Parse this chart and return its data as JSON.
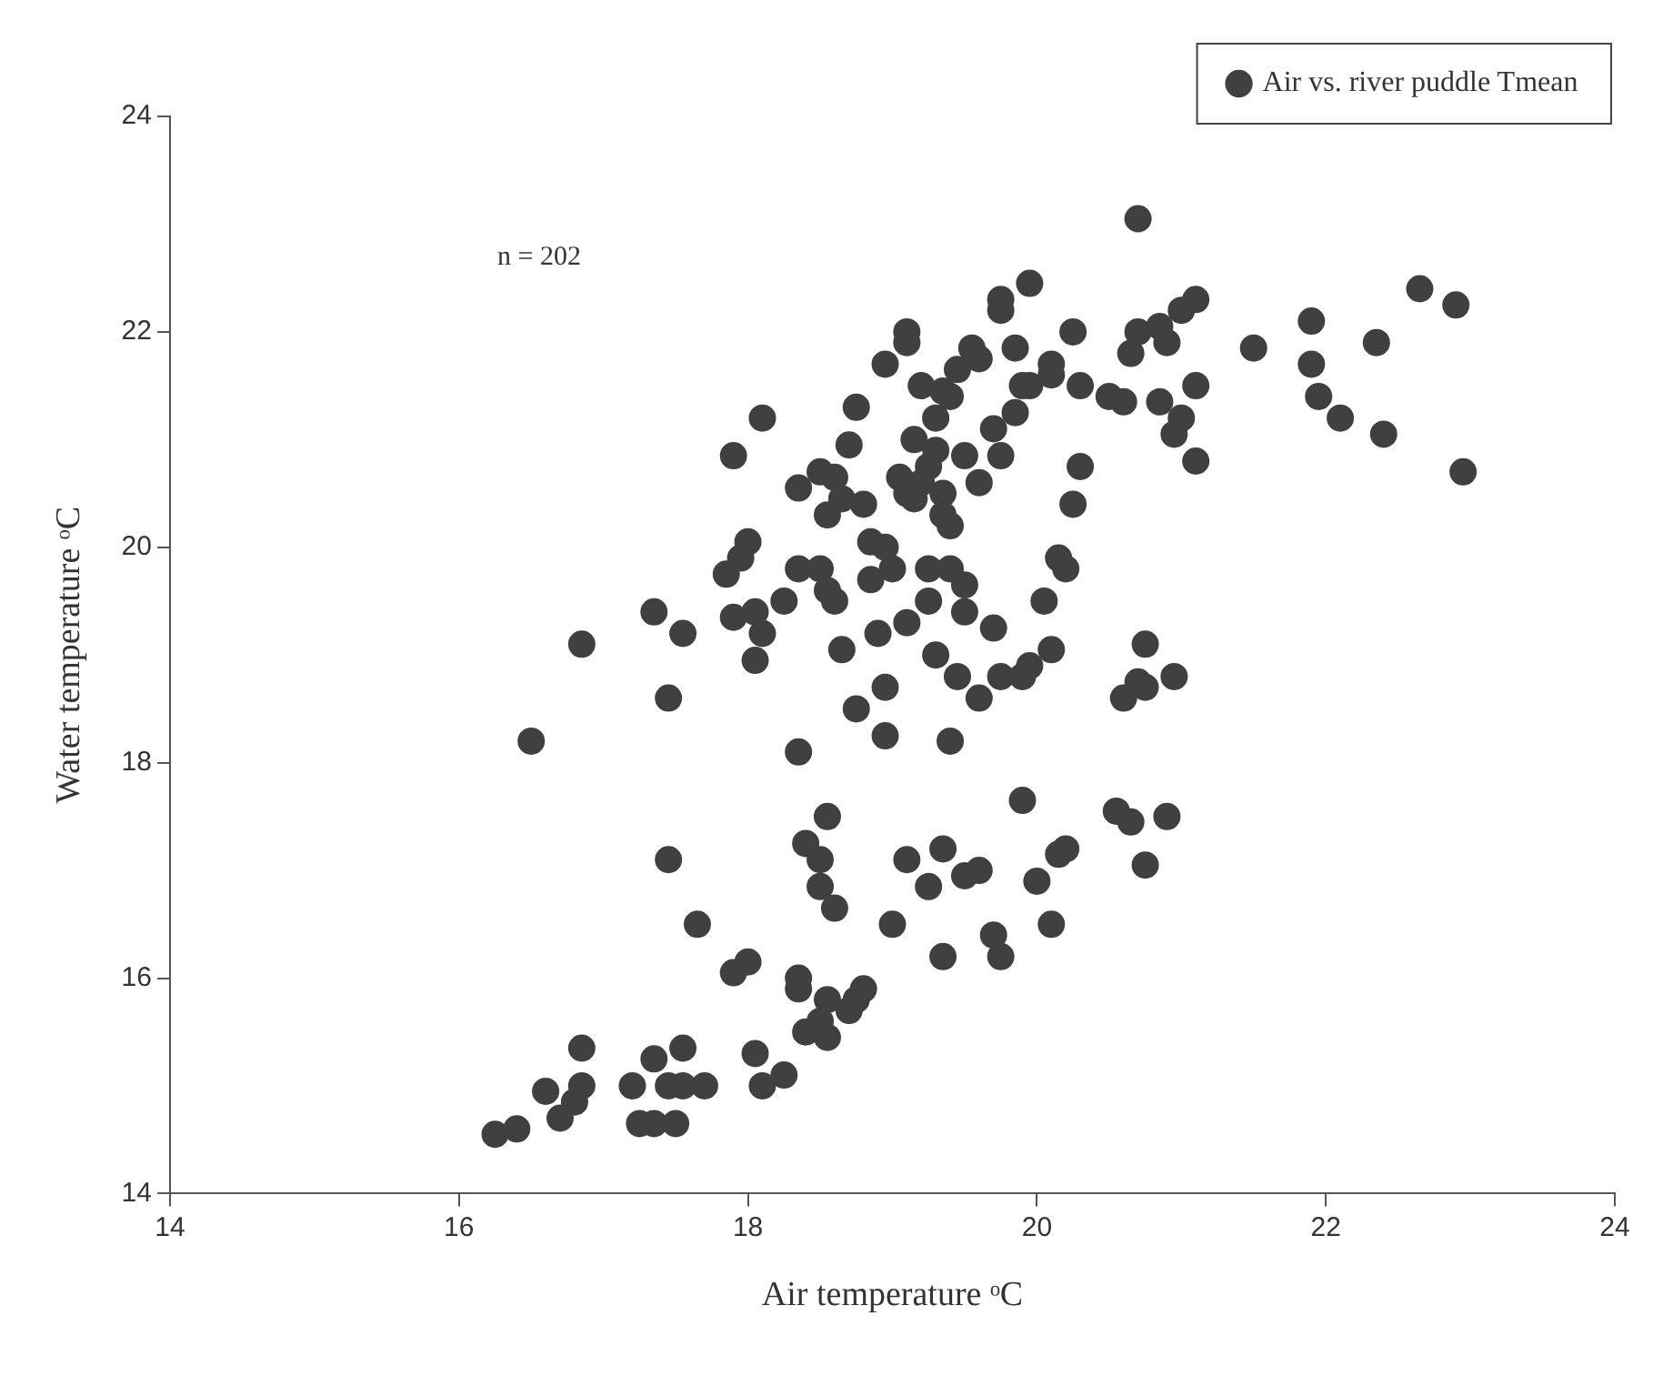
{
  "chart_data": {
    "type": "scatter",
    "xlabel": "Air temperature ᵒC",
    "ylabel": "Water temperature ᵒC",
    "annotations": [
      "n = 202"
    ],
    "xlim": [
      14,
      24
    ],
    "xticks": [
      14,
      16,
      18,
      20,
      22,
      24
    ],
    "ylim": [
      14,
      24
    ],
    "yticks": [
      14,
      16,
      18,
      20,
      22,
      24
    ],
    "grid": false,
    "legend": "top right",
    "marker": "circle",
    "series": [
      {
        "name": "Air vs. river puddle Tmean",
        "color": "#404040",
        "x": [
          16.25,
          16.4,
          16.6,
          16.7,
          16.8,
          16.85,
          16.85,
          17.2,
          17.25,
          17.35,
          17.35,
          17.45,
          17.5,
          17.55,
          17.55,
          17.7,
          17.45,
          17.65,
          17.9,
          18.0,
          18.05,
          18.1,
          18.25,
          18.35,
          18.35,
          18.4,
          18.5,
          18.55,
          18.55,
          18.7,
          18.75,
          18.8,
          18.4,
          18.5,
          18.55,
          18.5,
          18.6,
          18.35,
          19.0,
          19.1,
          19.25,
          19.35,
          19.35,
          19.5,
          19.6,
          19.7,
          19.75,
          19.9,
          20.0,
          20.1,
          20.15,
          20.2,
          20.55,
          20.65,
          20.75,
          20.9,
          16.5,
          16.85,
          17.35,
          17.45,
          17.55,
          17.85,
          17.9,
          17.95,
          18.0,
          18.05,
          18.05,
          18.1,
          17.9,
          18.1,
          18.25,
          18.35,
          18.5,
          18.55,
          18.6,
          18.65,
          18.75,
          18.9,
          18.95,
          18.95,
          18.85,
          19.1,
          19.25,
          19.3,
          19.4,
          19.45,
          19.5,
          19.6,
          19.7,
          19.75,
          19.95,
          20.1,
          20.05,
          20.2,
          20.6,
          20.7,
          20.75,
          20.75,
          20.95,
          19.9,
          18.35,
          18.5,
          18.55,
          18.6,
          18.65,
          18.7,
          18.75,
          18.8,
          18.85,
          18.95,
          19.0,
          19.05,
          19.1,
          19.15,
          19.2,
          19.25,
          19.3,
          19.35,
          19.35,
          19.4,
          19.3,
          19.25,
          19.4,
          19.5,
          19.15,
          19.4,
          19.5,
          19.6,
          19.7,
          19.75,
          19.95,
          20.1,
          20.15,
          20.25,
          20.3,
          20.1,
          20.3,
          18.95,
          19.1,
          19.1,
          19.2,
          19.35,
          19.45,
          19.55,
          19.6,
          19.75,
          19.75,
          19.85,
          19.95,
          19.85,
          19.9,
          20.25,
          20.5,
          20.6,
          20.65,
          20.7,
          20.7,
          20.85,
          20.9,
          21.0,
          21.1,
          20.85,
          20.95,
          21.0,
          21.1,
          21.1,
          21.5,
          21.9,
          21.9,
          21.95,
          22.1,
          22.35,
          22.4,
          22.65,
          22.9,
          22.95
        ],
        "values": [
          14.55,
          14.6,
          14.95,
          14.7,
          14.85,
          15.0,
          15.35,
          15.0,
          14.65,
          14.65,
          15.25,
          15.0,
          14.65,
          15.35,
          15.0,
          15.0,
          17.1,
          16.5,
          16.05,
          16.15,
          15.3,
          15.0,
          15.1,
          15.9,
          16.0,
          15.5,
          15.6,
          15.8,
          15.45,
          15.7,
          15.8,
          15.9,
          17.25,
          17.1,
          17.5,
          16.85,
          16.65,
          18.1,
          16.5,
          17.1,
          16.85,
          17.2,
          16.2,
          16.95,
          17.0,
          16.4,
          16.2,
          17.65,
          16.9,
          16.5,
          17.15,
          17.2,
          17.55,
          17.45,
          17.05,
          17.5,
          18.2,
          19.1,
          19.4,
          18.6,
          19.2,
          19.75,
          19.35,
          19.9,
          20.05,
          19.4,
          18.95,
          19.2,
          20.85,
          21.2,
          19.5,
          19.8,
          19.8,
          19.6,
          19.5,
          19.05,
          18.5,
          19.2,
          18.25,
          18.7,
          19.7,
          19.3,
          19.5,
          19.0,
          18.2,
          18.8,
          19.4,
          18.6,
          19.25,
          18.8,
          18.9,
          19.05,
          19.5,
          19.8,
          18.6,
          18.75,
          19.1,
          18.7,
          18.8,
          18.8,
          20.55,
          20.7,
          20.3,
          20.65,
          20.45,
          20.95,
          21.3,
          20.4,
          20.05,
          20.0,
          19.8,
          20.65,
          20.5,
          20.45,
          20.6,
          20.75,
          20.9,
          20.5,
          20.3,
          20.2,
          21.2,
          19.8,
          19.8,
          19.65,
          21.0,
          21.4,
          20.85,
          20.6,
          21.1,
          20.85,
          21.5,
          21.7,
          19.9,
          20.4,
          20.75,
          21.6,
          21.5,
          21.7,
          21.9,
          22.0,
          21.5,
          21.45,
          21.65,
          21.85,
          21.75,
          22.2,
          22.3,
          21.85,
          22.45,
          21.25,
          21.5,
          22.0,
          21.4,
          21.35,
          21.8,
          22.0,
          23.05,
          22.05,
          21.9,
          22.2,
          22.3,
          21.35,
          21.05,
          21.2,
          21.5,
          20.8,
          21.85,
          22.1,
          21.7,
          21.4,
          21.2,
          21.9,
          21.05,
          22.4,
          22.25,
          20.7
        ]
      }
    ]
  }
}
